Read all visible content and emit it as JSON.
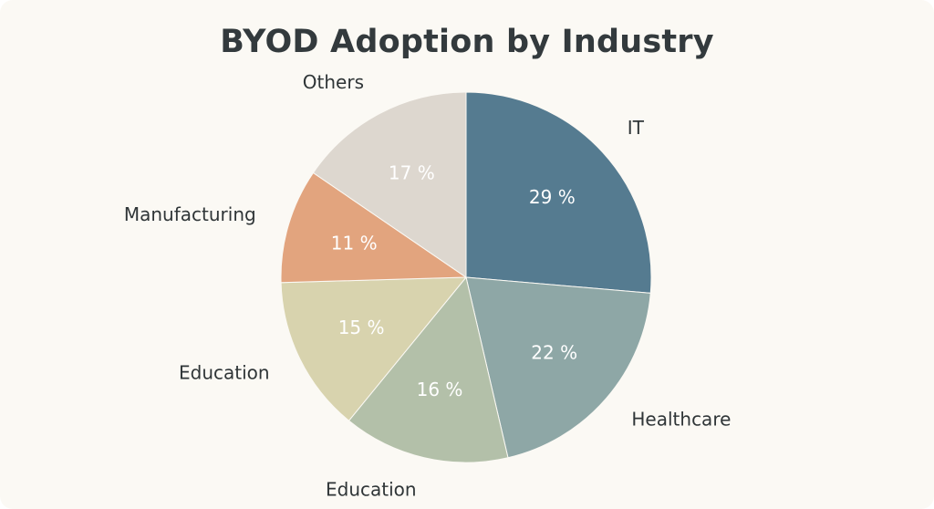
{
  "chart_data": {
    "type": "pie",
    "title": "BYOD Adoption by Industry",
    "slices": [
      {
        "label": "IT",
        "value": 29,
        "value_label": "29 %",
        "color": "#557b90"
      },
      {
        "label": "Healthcare",
        "value": 22,
        "value_label": "22 %",
        "color": "#8ea7a6"
      },
      {
        "label": "Education",
        "value": 16,
        "value_label": "16 %",
        "color": "#b3c0a9"
      },
      {
        "label": "Education",
        "value": 15,
        "value_label": "15 %",
        "color": "#d8d3ae"
      },
      {
        "label": "Manufacturing",
        "value": 11,
        "value_label": "11 %",
        "color": "#e2a47e"
      },
      {
        "label": "Others",
        "value": 17,
        "value_label": "17 %",
        "color": "#ddd7cf"
      }
    ],
    "start_angle": "top",
    "direction": "clockwise",
    "label_color": "#2f3537",
    "value_text_color": "#ffffff"
  }
}
